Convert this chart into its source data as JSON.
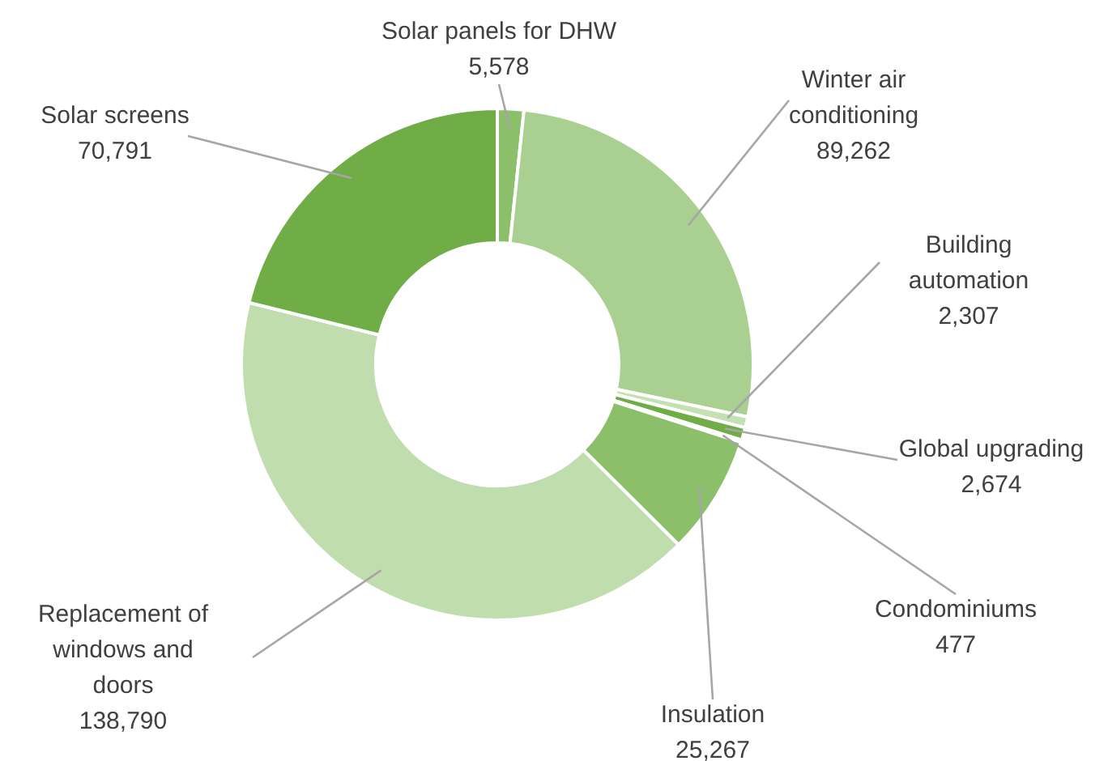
{
  "chart_data": {
    "type": "donut",
    "categories": [
      "Solar panels for DHW",
      "Winter air conditioning",
      "Building automation",
      "Global upgrading",
      "Condominiums",
      "Insulation",
      "Replacement of windows and doors",
      "Solar screens"
    ],
    "values": [
      5578,
      89262,
      2307,
      2674,
      477,
      25267,
      138790,
      70791
    ],
    "colors": [
      "#8cbf6a",
      "#a9cf91",
      "#c5e0b3",
      "#70ad47",
      "#a9cf91",
      "#8cbf6a",
      "#c0ddae",
      "#70ad47"
    ],
    "value_labels": [
      "5,578",
      "89,262",
      "2,307",
      "2,674",
      "477",
      "25,267",
      "138,790",
      "70,791"
    ]
  }
}
